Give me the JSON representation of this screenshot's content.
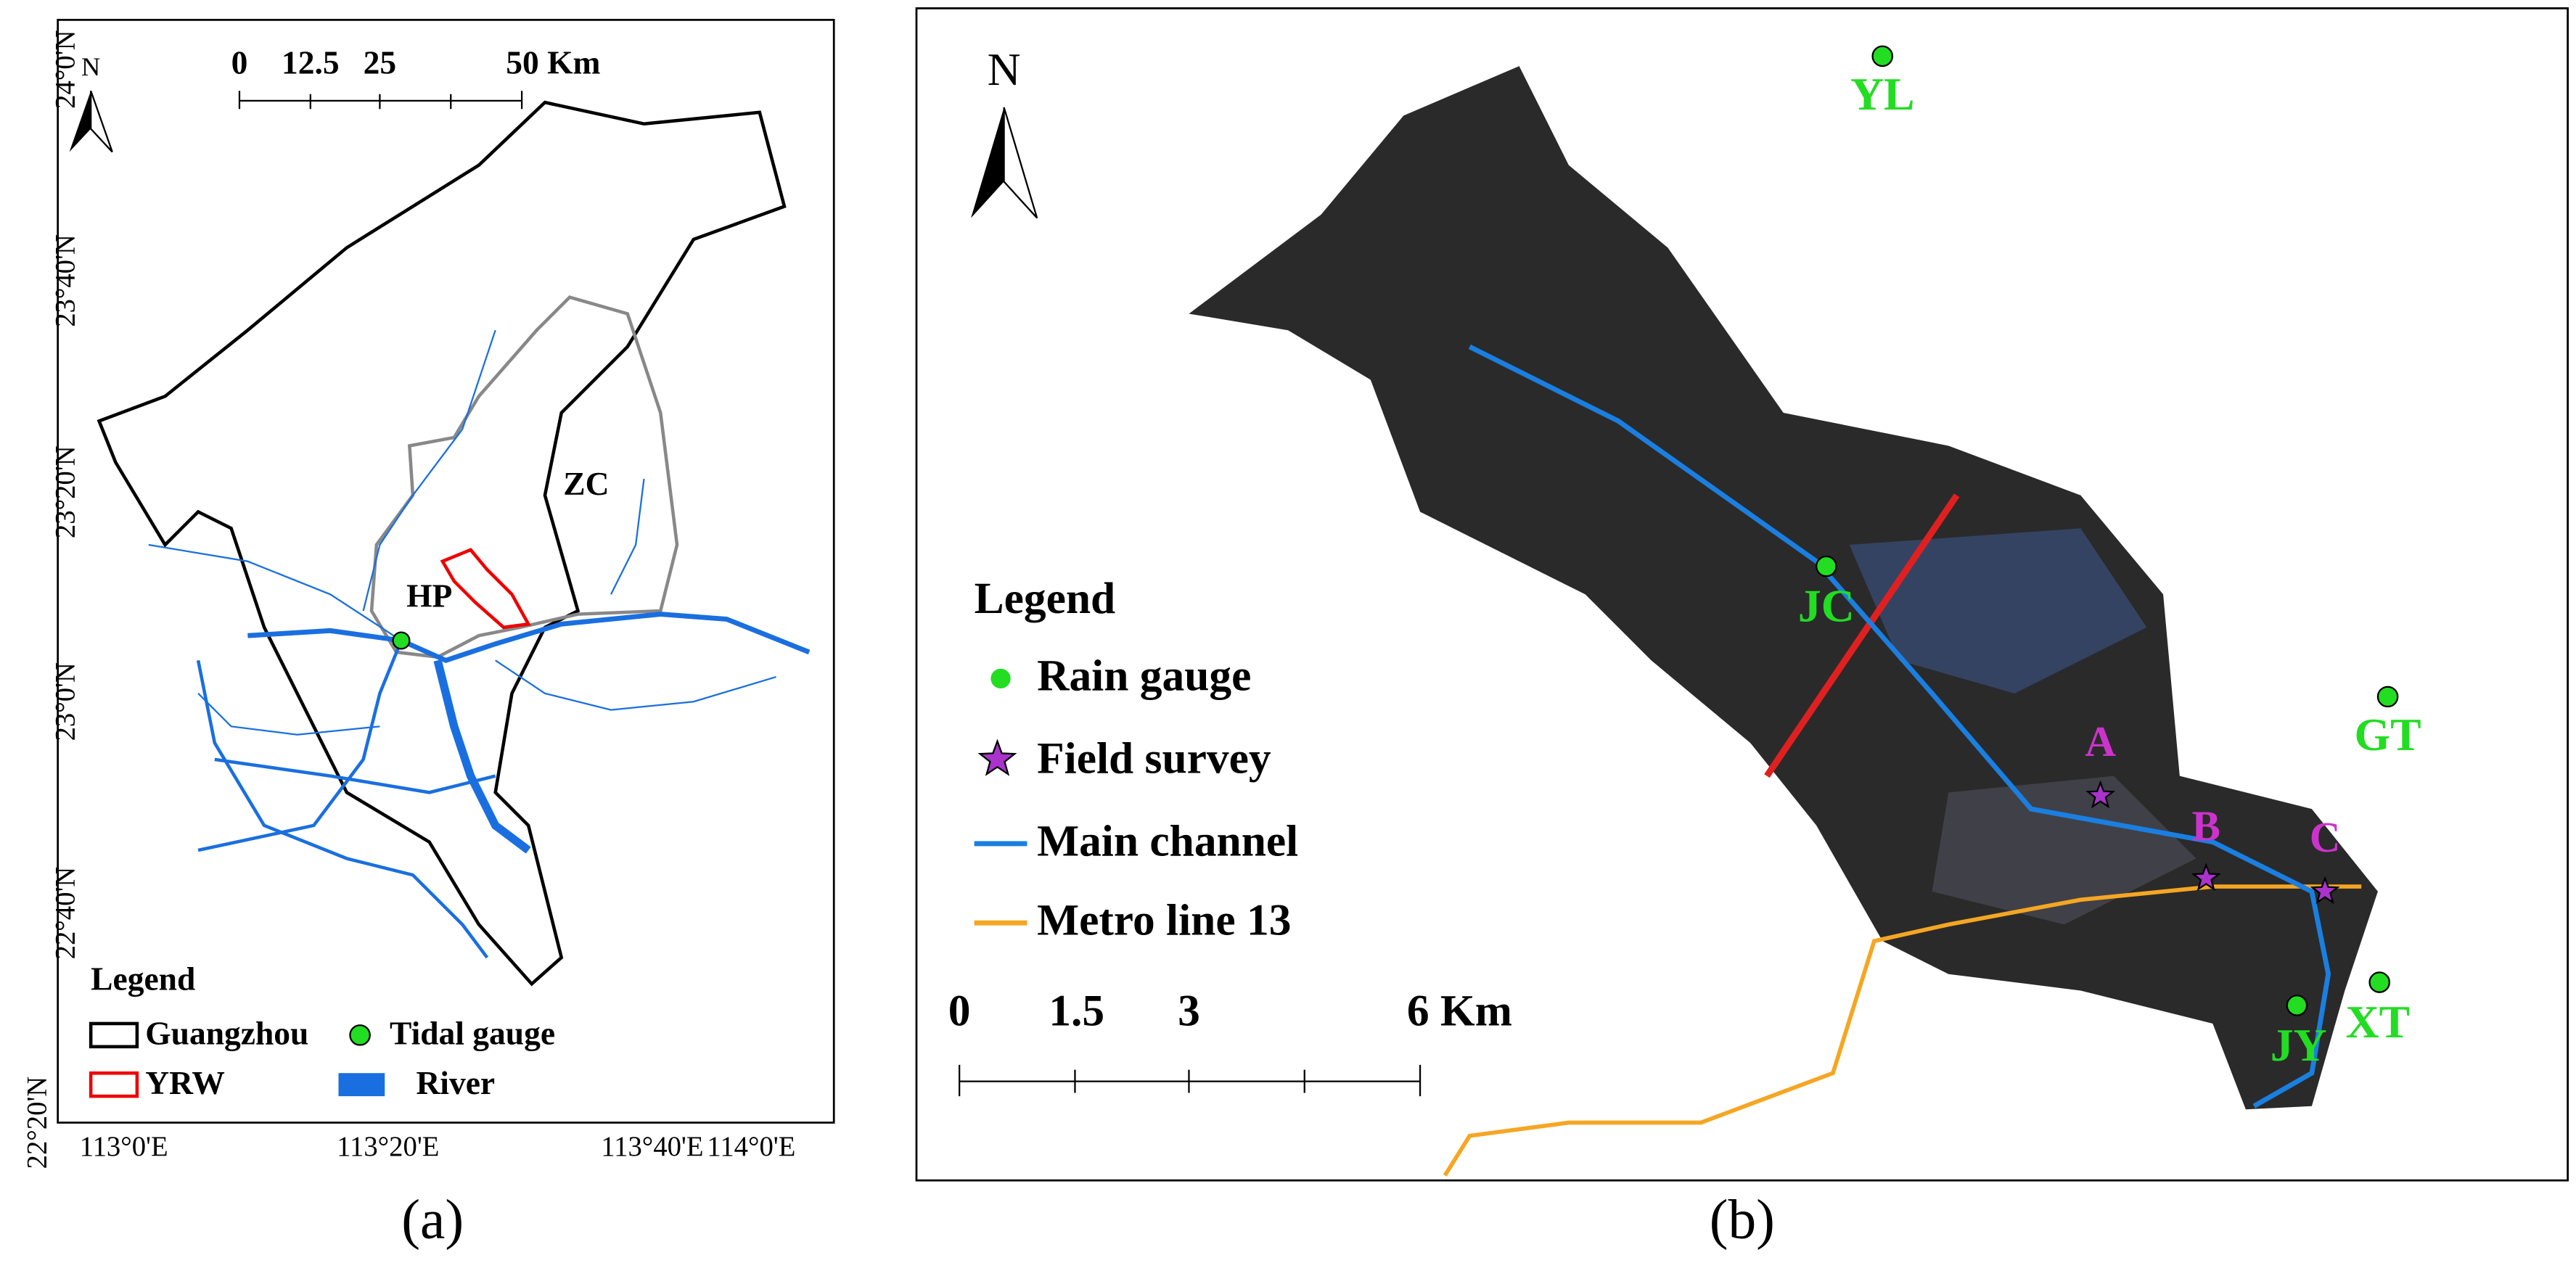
{
  "panel_a": {
    "caption": "(a)",
    "north": "N",
    "lat_labels": [
      "24°0'N",
      "23°40'N",
      "23°20'N",
      "23°0'N",
      "22°40'N",
      "22°20'N"
    ],
    "lon_labels": [
      "113°0'E",
      "113°20'E",
      "113°40'E",
      "114°0'E"
    ],
    "scale_bar": [
      "0",
      "12.5",
      "25",
      "50 Km"
    ],
    "place_labels": [
      "ZC",
      "HP"
    ],
    "legend": {
      "title": "Legend",
      "items": [
        "Guangzhou",
        "Tidal gauge",
        "YRW",
        "River"
      ]
    }
  },
  "panel_b": {
    "caption": "(b)",
    "north": "N",
    "gauges": [
      "YL",
      "JC",
      "GT",
      "XT",
      "JY"
    ],
    "survey_points": [
      "A",
      "B",
      "C"
    ],
    "scale_bar": [
      "0",
      "1.5",
      "3",
      "6 Km"
    ],
    "legend": {
      "title": "Legend",
      "items": [
        "Rain gauge",
        "Field survey",
        "Main channel",
        "Metro line 13"
      ]
    }
  }
}
